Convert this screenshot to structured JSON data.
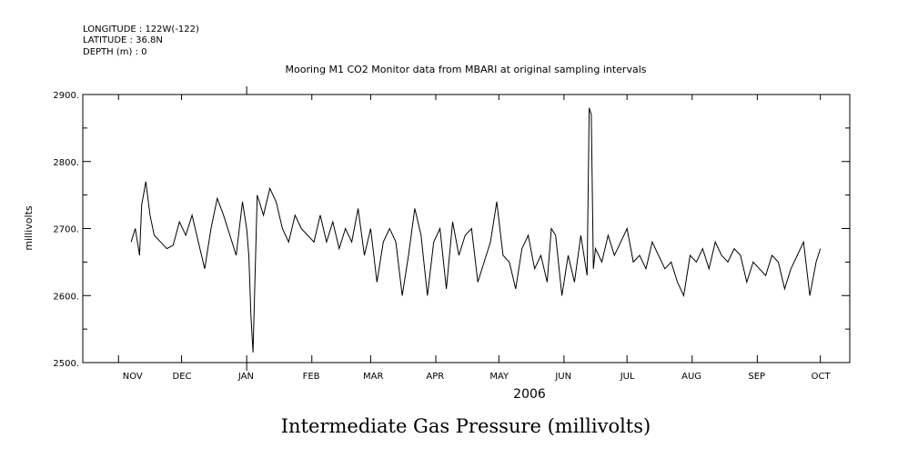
{
  "header": {
    "longitude": "LONGITUDE : 122W(-122)",
    "latitude": "LATITUDE : 36.8N",
    "depth": "DEPTH (m) : 0"
  },
  "footer_title": "Intermediate Gas Pressure (millivolts)",
  "chart_data": {
    "type": "line",
    "title": "Mooring M1 CO2 Monitor data from MBARI at original sampling intervals",
    "xlabel": "2006",
    "ylabel": "millivolts",
    "ylim": [
      2500,
      2900
    ],
    "yticks": [
      "2500.",
      "2600.",
      "2700.",
      "2800.",
      "2900."
    ],
    "x_axis_months": [
      "NOV",
      "DEC",
      "JAN",
      "FEB",
      "MAR",
      "APR",
      "MAY",
      "JUN",
      "JUL",
      "AUG",
      "SEP",
      "OCT"
    ],
    "xlim": [
      "2005-10-15",
      "2006-10-15"
    ],
    "grid": false,
    "colors": {
      "line": "#000000",
      "axis": "#000000",
      "background": "#ffffff"
    },
    "series": [
      {
        "x": [
          "2005-11-07",
          "2005-11-09",
          "2005-11-11",
          "2005-11-12",
          "2005-11-14",
          "2005-11-16",
          "2005-11-18",
          "2005-11-21",
          "2005-11-24",
          "2005-11-27",
          "2005-11-30",
          "2005-12-03",
          "2005-12-06",
          "2005-12-09",
          "2005-12-12",
          "2005-12-15",
          "2005-12-18",
          "2005-12-21",
          "2005-12-24",
          "2005-12-27",
          "2005-12-30",
          "2006-01-01",
          "2006-01-02",
          "2006-01-03",
          "2006-01-04",
          "2006-01-06",
          "2006-01-09",
          "2006-01-12",
          "2006-01-15",
          "2006-01-18",
          "2006-01-21",
          "2006-01-24",
          "2006-01-27",
          "2006-01-30",
          "2006-02-02",
          "2006-02-05",
          "2006-02-08",
          "2006-02-11",
          "2006-02-14",
          "2006-02-17",
          "2006-02-20",
          "2006-02-23",
          "2006-02-26",
          "2006-03-01",
          "2006-03-04",
          "2006-03-07",
          "2006-03-10",
          "2006-03-13",
          "2006-03-16",
          "2006-03-19",
          "2006-03-22",
          "2006-03-25",
          "2006-03-28",
          "2006-03-31",
          "2006-04-03",
          "2006-04-06",
          "2006-04-09",
          "2006-04-12",
          "2006-04-15",
          "2006-04-18",
          "2006-04-21",
          "2006-04-24",
          "2006-04-27",
          "2006-04-30",
          "2006-05-03",
          "2006-05-06",
          "2006-05-09",
          "2006-05-12",
          "2006-05-15",
          "2006-05-18",
          "2006-05-21",
          "2006-05-24",
          "2006-05-26",
          "2006-05-28",
          "2006-05-31",
          "2006-06-03",
          "2006-06-06",
          "2006-06-09",
          "2006-06-12",
          "2006-06-13",
          "2006-06-14",
          "2006-06-15",
          "2006-06-16",
          "2006-06-19",
          "2006-06-22",
          "2006-06-25",
          "2006-06-28",
          "2006-07-01",
          "2006-07-04",
          "2006-07-07",
          "2006-07-10",
          "2006-07-13",
          "2006-07-16",
          "2006-07-19",
          "2006-07-22",
          "2006-07-25",
          "2006-07-28",
          "2006-07-31",
          "2006-08-03",
          "2006-08-06",
          "2006-08-09",
          "2006-08-12",
          "2006-08-15",
          "2006-08-18",
          "2006-08-21",
          "2006-08-24",
          "2006-08-27",
          "2006-08-30",
          "2006-09-02",
          "2006-09-05",
          "2006-09-08",
          "2006-09-11",
          "2006-09-14",
          "2006-09-17",
          "2006-09-20",
          "2006-09-23",
          "2006-09-26",
          "2006-09-29",
          "2006-10-01"
        ],
        "y": [
          2680,
          2700,
          2660,
          2735,
          2770,
          2720,
          2690,
          2680,
          2670,
          2675,
          2710,
          2690,
          2720,
          2680,
          2640,
          2700,
          2745,
          2720,
          2690,
          2660,
          2740,
          2700,
          2660,
          2570,
          2515,
          2750,
          2720,
          2760,
          2740,
          2700,
          2680,
          2720,
          2700,
          2690,
          2680,
          2720,
          2680,
          2710,
          2670,
          2700,
          2680,
          2730,
          2660,
          2700,
          2620,
          2680,
          2700,
          2680,
          2600,
          2660,
          2730,
          2690,
          2600,
          2680,
          2700,
          2610,
          2710,
          2660,
          2690,
          2700,
          2620,
          2650,
          2680,
          2740,
          2660,
          2650,
          2610,
          2670,
          2690,
          2640,
          2660,
          2620,
          2700,
          2690,
          2600,
          2660,
          2620,
          2690,
          2630,
          2880,
          2870,
          2640,
          2670,
          2650,
          2690,
          2660,
          2680,
          2700,
          2650,
          2660,
          2640,
          2680,
          2660,
          2640,
          2650,
          2620,
          2600,
          2660,
          2650,
          2670,
          2640,
          2680,
          2660,
          2650,
          2670,
          2660,
          2620,
          2650,
          2640,
          2630,
          2660,
          2650,
          2610,
          2640,
          2660,
          2680,
          2600,
          2650,
          2670
        ],
        "note_min": ""
      }
    ]
  }
}
